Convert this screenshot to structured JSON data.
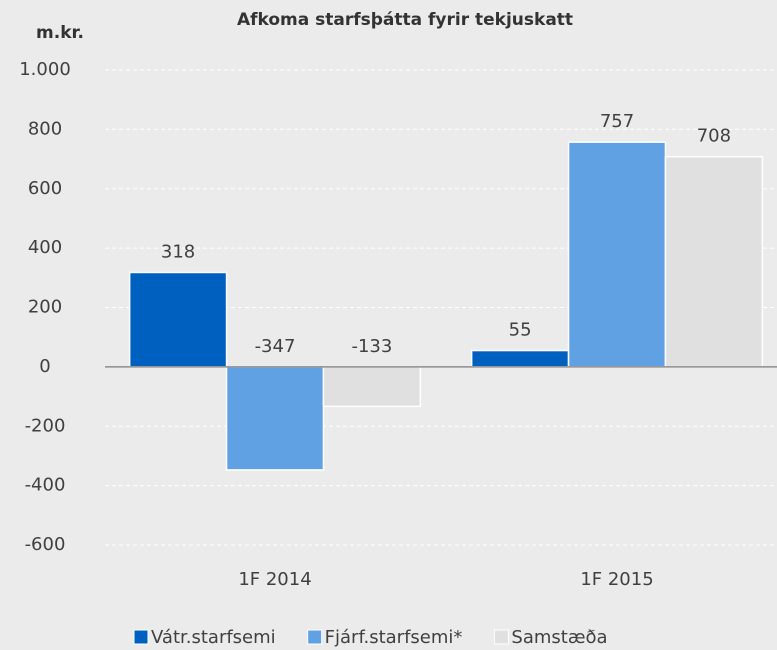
{
  "chart_data": {
    "type": "bar",
    "title": "Afkoma starfsþátta fyrir tekjuskatt",
    "y_label": "m.kr.",
    "categories": [
      "1F 2014",
      "1F 2015"
    ],
    "series": [
      {
        "name": "Vátr.starfsemi",
        "color": "#0060bf",
        "values": [
          318,
          55
        ]
      },
      {
        "name": "Fjárf.starfsemi*",
        "color": "#60a1e3",
        "values": [
          -347,
          757
        ]
      },
      {
        "name": "Samstæða",
        "color": "#e0e0e0",
        "values": [
          -133,
          708
        ]
      }
    ],
    "ylim": [
      -600,
      1000
    ],
    "yticks": [
      -600,
      -400,
      -200,
      0,
      200,
      400,
      600,
      800,
      {
        "value": 1000,
        "label": "1.000"
      }
    ],
    "grid": true,
    "legend": "bottom"
  }
}
